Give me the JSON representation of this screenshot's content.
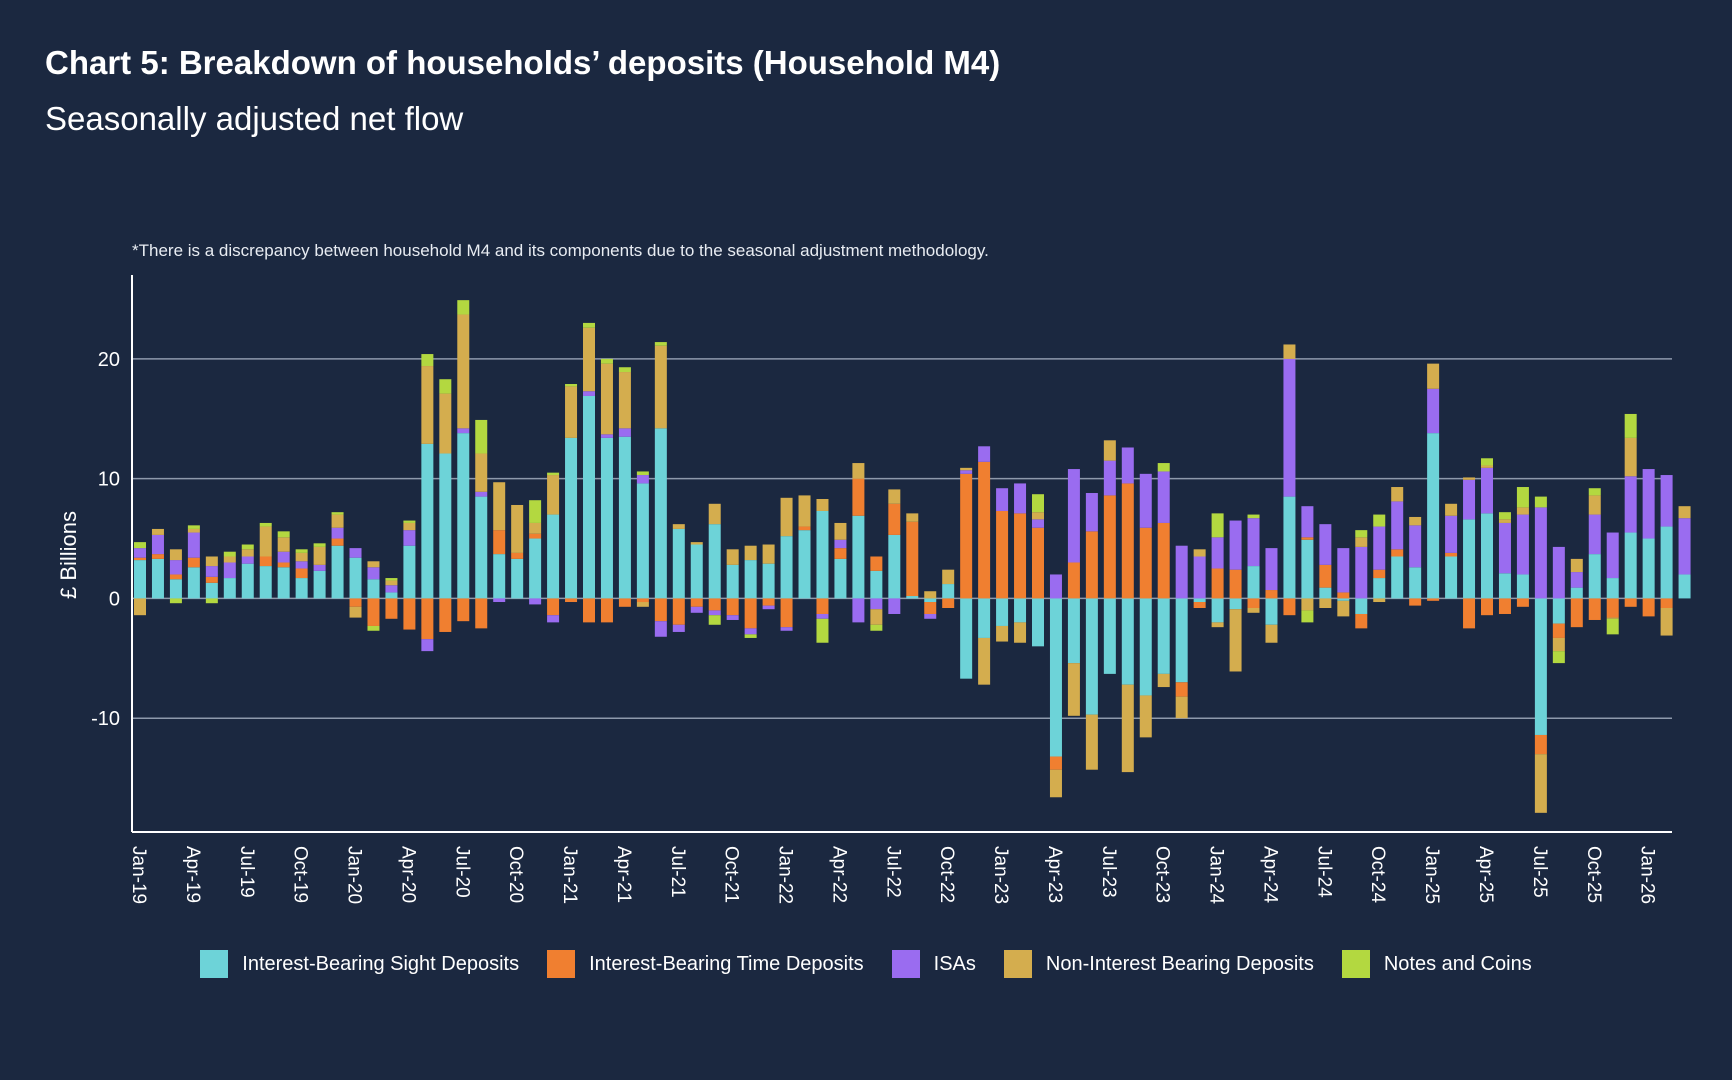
{
  "title": "Chart 5: Breakdown of households’ deposits (Household M4)",
  "subtitle": "Seasonally adjusted net flow",
  "note": "*There is a discrepancy between household M4 and its components due to the seasonal adjustment methodology.",
  "chart_data": {
    "type": "bar",
    "stacked": true,
    "title": "Chart 5: Breakdown of households’ deposits (Household M4)",
    "subtitle": "Seasonally adjusted net flow",
    "xlabel": "",
    "ylabel": "£ Billions",
    "ylim": [
      -19.5,
      27
    ],
    "yticks": [
      -10,
      0,
      10,
      20
    ],
    "grid": true,
    "legend_position": "bottom",
    "xtick_labels": [
      "Jan-19",
      "Apr-19",
      "Jul-19",
      "Oct-19",
      "Jan-20",
      "Apr-20",
      "Jul-20",
      "Oct-20",
      "Jan-21",
      "Apr-21",
      "Jul-21",
      "Oct-21",
      "Jan-22",
      "Apr-22",
      "Jul-22",
      "Oct-22",
      "Jan-23",
      "Apr-23",
      "Jul-23",
      "Oct-23",
      "Jan-24",
      "Apr-24",
      "Jul-24",
      "Oct-24",
      "Jan-25",
      "Apr-25",
      "Jul-25",
      "Oct-25",
      "Jan-26"
    ],
    "start_month": "Jan-19",
    "n_months": 87,
    "colors": {
      "Interest-Bearing Sight Deposits": "#6dd3d8",
      "Interest-Bearing Time Deposits": "#f07f30",
      "ISAs": "#9a6cf0",
      "Non-Interest Bearing Deposits": "#d4ad4e",
      "Notes and Coins": "#b3d840"
    },
    "series": [
      {
        "name": "Interest-Bearing Sight Deposits",
        "values": [
          3.2,
          3.3,
          1.6,
          2.6,
          1.3,
          1.7,
          2.9,
          2.7,
          2.6,
          1.7,
          2.3,
          4.4,
          3.4,
          1.6,
          0.5,
          4.4,
          12.9,
          12.1,
          13.8,
          8.5,
          3.7,
          3.3,
          5.0,
          7.0,
          13.4,
          16.9,
          13.4,
          13.5,
          9.6,
          14.2,
          5.8,
          4.5,
          6.2,
          2.8,
          3.2,
          2.9,
          5.2,
          5.7,
          7.3,
          3.3,
          6.9,
          2.3,
          5.3,
          0.2,
          -0.3,
          1.2,
          -6.7,
          -3.3,
          -2.3,
          -2.0,
          -4.0,
          -13.2,
          -5.4,
          -9.7,
          -6.3,
          -7.2,
          -8.1,
          -6.3,
          -7.0,
          -0.3,
          -2.0,
          -0.9,
          2.7,
          -2.2,
          8.5,
          4.9,
          0.9,
          -0.2,
          -1.3,
          1.7,
          3.5,
          2.6,
          13.8,
          3.5,
          6.6,
          7.1,
          2.1,
          2.0,
          -11.4,
          -2.1,
          0.9,
          3.7,
          1.7,
          5.5,
          5.0,
          6.0,
          2.0
        ]
      },
      {
        "name": "Interest-Bearing Time Deposits",
        "values": [
          0.2,
          0.4,
          0.4,
          0.8,
          0.5,
          0.0,
          0.0,
          0.8,
          0.4,
          0.8,
          0.0,
          0.6,
          -0.7,
          -2.3,
          -1.7,
          -2.6,
          -3.4,
          -2.8,
          -1.9,
          -2.5,
          2.0,
          0.5,
          0.4,
          -1.4,
          -0.3,
          -2.0,
          -2.0,
          -0.7,
          -0.3,
          -1.9,
          -2.2,
          -0.7,
          -1.0,
          -1.4,
          -2.5,
          -0.6,
          -2.4,
          0.3,
          -1.3,
          0.9,
          3.1,
          1.2,
          2.6,
          6.2,
          -1.0,
          -0.8,
          10.4,
          11.4,
          7.3,
          7.1,
          5.9,
          -1.1,
          3.0,
          5.6,
          8.6,
          9.6,
          5.9,
          6.3,
          -1.2,
          -0.5,
          2.5,
          2.4,
          -0.8,
          0.7,
          -1.4,
          0.2,
          1.9,
          0.5,
          -1.2,
          0.7,
          0.6,
          -0.6,
          -0.2,
          0.3,
          -2.5,
          -1.4,
          -1.3,
          -0.7,
          -1.6,
          -1.2,
          -2.4,
          -1.8,
          -1.6,
          -0.7,
          -1.5,
          -0.8,
          0.0
        ]
      },
      {
        "name": "ISAs",
        "values": [
          0.8,
          1.6,
          1.2,
          2.1,
          0.9,
          1.3,
          0.6,
          0.0,
          0.9,
          0.6,
          0.5,
          0.9,
          0.8,
          1.0,
          0.6,
          1.3,
          -1.0,
          0.0,
          0.4,
          0.4,
          -0.3,
          0.0,
          -0.5,
          -0.6,
          0.0,
          0.4,
          0.3,
          0.7,
          0.7,
          -1.3,
          -0.6,
          -0.5,
          -0.4,
          -0.4,
          -0.5,
          -0.3,
          -0.3,
          0.0,
          -0.4,
          0.7,
          -2.0,
          -0.9,
          -1.3,
          0.0,
          -0.4,
          0.0,
          0.3,
          1.3,
          1.9,
          2.5,
          0.7,
          2.0,
          7.8,
          3.2,
          2.9,
          3.0,
          4.5,
          4.3,
          4.4,
          3.5,
          2.6,
          4.1,
          4.0,
          3.5,
          11.5,
          2.6,
          3.4,
          3.7,
          4.3,
          3.6,
          4.0,
          3.5,
          3.7,
          3.1,
          3.3,
          3.8,
          4.2,
          5.0,
          7.6,
          4.3,
          1.3,
          3.3,
          3.8,
          4.7,
          5.8,
          4.3,
          4.7
        ]
      },
      {
        "name": "Non-Interest Bearing Deposits",
        "values": [
          -1.4,
          0.5,
          0.9,
          0.3,
          0.8,
          0.5,
          0.6,
          2.5,
          1.2,
          0.7,
          1.5,
          1.1,
          -0.9,
          0.5,
          0.4,
          0.6,
          6.5,
          5.0,
          9.5,
          3.2,
          4.0,
          4.0,
          0.9,
          3.3,
          4.3,
          5.3,
          5.9,
          4.7,
          -0.4,
          6.9,
          0.4,
          0.2,
          1.7,
          1.3,
          1.2,
          1.6,
          3.2,
          2.6,
          1.0,
          1.4,
          1.3,
          -1.3,
          1.2,
          0.7,
          0.6,
          1.2,
          0.2,
          -3.9,
          -1.3,
          -1.7,
          0.6,
          -2.3,
          -4.4,
          -4.6,
          1.7,
          -7.3,
          -3.5,
          -1.1,
          -1.8,
          0.6,
          -0.4,
          -5.2,
          -0.4,
          -1.5,
          1.2,
          -1.0,
          -0.8,
          -1.3,
          0.8,
          -0.3,
          1.2,
          0.7,
          2.1,
          1.0,
          0.2,
          0.2,
          0.3,
          0.6,
          -4.9,
          -1.1,
          1.1,
          1.6,
          -0.1,
          3.2,
          0.0,
          -2.3,
          1.0
        ]
      },
      {
        "name": "Notes and Coins",
        "values": [
          0.5,
          0.0,
          -0.4,
          0.3,
          -0.4,
          0.4,
          0.4,
          0.3,
          0.5,
          0.3,
          0.3,
          0.2,
          0.0,
          -0.4,
          0.2,
          0.2,
          1.0,
          1.2,
          1.2,
          2.8,
          0.0,
          0.0,
          1.9,
          0.2,
          0.2,
          0.4,
          0.4,
          0.4,
          0.3,
          0.3,
          0.0,
          0.0,
          -0.8,
          0.0,
          -0.3,
          0.0,
          0.0,
          0.0,
          -2.0,
          0.0,
          0.0,
          -0.5,
          0.0,
          0.0,
          0.0,
          0.0,
          0.0,
          0.0,
          0.0,
          0.0,
          1.5,
          0.0,
          0.0,
          0.0,
          0.0,
          0.0,
          0.0,
          0.7,
          0.0,
          0.0,
          2.0,
          0.0,
          0.3,
          0.0,
          0.0,
          -1.0,
          0.0,
          0.0,
          0.6,
          1.0,
          0.0,
          0.0,
          0.0,
          0.0,
          0.0,
          0.6,
          0.6,
          1.7,
          0.9,
          -1.0,
          0.0,
          0.6,
          -1.3,
          2.0,
          0.0,
          0.0,
          0.0
        ]
      }
    ]
  },
  "legend": {
    "items": [
      {
        "label": "Interest-Bearing Sight Deposits",
        "color": "#6dd3d8"
      },
      {
        "label": "Interest-Bearing Time Deposits",
        "color": "#f07f30"
      },
      {
        "label": "ISAs",
        "color": "#9a6cf0"
      },
      {
        "label": "Non-Interest Bearing Deposits",
        "color": "#d4ad4e"
      },
      {
        "label": "Notes and Coins",
        "color": "#b3d840"
      }
    ]
  },
  "axis": {
    "ylabel": "£ Billions",
    "ytick_labels": [
      "-10",
      "0",
      "10",
      "20"
    ]
  }
}
